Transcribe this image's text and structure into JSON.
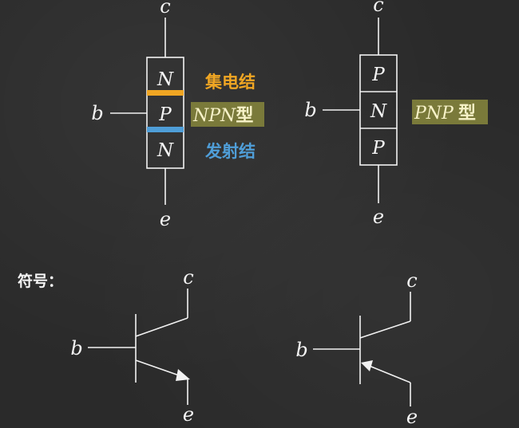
{
  "npn": {
    "terminal_c": "c",
    "terminal_b": "b",
    "terminal_e": "e",
    "layers": [
      "N",
      "P",
      "N"
    ],
    "type_label": "NPN",
    "type_suffix": "型",
    "collector_junction_label": "集电结",
    "emitter_junction_label": "发射结"
  },
  "pnp": {
    "terminal_c": "c",
    "terminal_b": "b",
    "terminal_e": "e",
    "layers": [
      "P",
      "N",
      "P"
    ],
    "type_label": "PNP",
    "type_suffix": "型"
  },
  "symbols": {
    "heading": "符号：",
    "npn_symbol": {
      "terminal_c": "c",
      "terminal_b": "b",
      "terminal_e": "e"
    },
    "pnp_symbol": {
      "terminal_c": "c",
      "terminal_b": "b",
      "terminal_e": "e"
    }
  },
  "colors": {
    "collector_junction": "#f0a623",
    "emitter_junction": "#4f9ed8",
    "type_highlight": "#7a7a3a"
  }
}
